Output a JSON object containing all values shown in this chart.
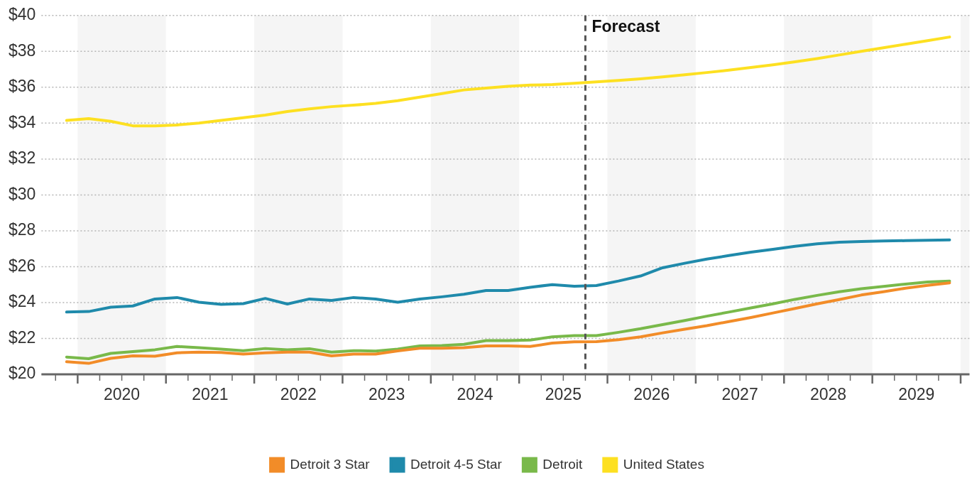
{
  "chart_data": {
    "type": "line",
    "x": [
      2019.875,
      2020.125,
      2020.375,
      2020.625,
      2020.875,
      2021.125,
      2021.375,
      2021.625,
      2021.875,
      2022.125,
      2022.375,
      2022.625,
      2022.875,
      2023.125,
      2023.375,
      2023.625,
      2023.875,
      2024.125,
      2024.375,
      2024.625,
      2024.875,
      2025.125,
      2025.375,
      2025.625,
      2025.875,
      2026.125,
      2026.375,
      2026.625,
      2026.875,
      2027.125,
      2027.375,
      2027.625,
      2027.875,
      2028.125,
      2028.375,
      2028.625,
      2028.875,
      2029.125,
      2029.375,
      2029.625,
      2029.875
    ],
    "series": [
      {
        "name": "Detroit 3 Star",
        "color": "#f28c28",
        "values": [
          20.7,
          20.61,
          20.89,
          21.03,
          21.01,
          21.2,
          21.24,
          21.22,
          21.13,
          21.2,
          21.24,
          21.24,
          21.03,
          21.13,
          21.13,
          21.31,
          21.45,
          21.45,
          21.48,
          21.58,
          21.58,
          21.55,
          21.74,
          21.81,
          21.82,
          21.93,
          22.09,
          22.31,
          22.51,
          22.71,
          22.94,
          23.17,
          23.42,
          23.67,
          23.93,
          24.17,
          24.42,
          24.6,
          24.8,
          24.96,
          25.1
        ]
      },
      {
        "name": "Detroit 4-5 Star",
        "color": "#1f8aab",
        "values": [
          23.47,
          23.5,
          23.74,
          23.81,
          24.2,
          24.28,
          24.02,
          23.9,
          23.94,
          24.23,
          23.92,
          24.2,
          24.12,
          24.28,
          24.2,
          24.02,
          24.2,
          24.32,
          24.46,
          24.67,
          24.67,
          24.85,
          25.0,
          24.91,
          24.95,
          25.2,
          25.48,
          25.94,
          26.19,
          26.42,
          26.62,
          26.81,
          26.97,
          27.14,
          27.27,
          27.36,
          27.4,
          27.43,
          27.45,
          27.47,
          27.49
        ]
      },
      {
        "name": "Detroit",
        "color": "#79b94a",
        "values": [
          20.96,
          20.87,
          21.17,
          21.27,
          21.37,
          21.55,
          21.48,
          21.41,
          21.32,
          21.44,
          21.37,
          21.43,
          21.24,
          21.32,
          21.3,
          21.41,
          21.58,
          21.6,
          21.67,
          21.88,
          21.88,
          21.91,
          22.09,
          22.16,
          22.16,
          22.34,
          22.54,
          22.77,
          23.0,
          23.24,
          23.47,
          23.7,
          23.93,
          24.18,
          24.4,
          24.6,
          24.77,
          24.9,
          25.03,
          25.15,
          25.2
        ]
      },
      {
        "name": "United States",
        "color": "#fde021",
        "values": [
          34.15,
          34.25,
          34.1,
          33.85,
          33.85,
          33.9,
          34.0,
          34.15,
          34.3,
          34.45,
          34.65,
          34.8,
          34.92,
          35.0,
          35.1,
          35.25,
          35.45,
          35.65,
          35.85,
          35.95,
          36.05,
          36.12,
          36.15,
          36.22,
          36.3,
          36.38,
          36.47,
          36.58,
          36.7,
          36.82,
          36.95,
          37.1,
          37.25,
          37.42,
          37.6,
          37.8,
          38.0,
          38.2,
          38.4,
          38.6,
          38.8
        ]
      }
    ],
    "xlim": [
      2019.59,
      2030.1
    ],
    "xticks": [
      {
        "value": 2019.75,
        "label": null
      },
      {
        "value": 2020,
        "label": null
      },
      {
        "value": 2020.25,
        "label": null
      },
      {
        "value": 2020.5,
        "label": "2020"
      },
      {
        "value": 2020.75,
        "label": null
      },
      {
        "value": 2021,
        "label": null
      },
      {
        "value": 2021.25,
        "label": null
      },
      {
        "value": 2021.5,
        "label": "2021"
      },
      {
        "value": 2021.75,
        "label": null
      },
      {
        "value": 2022,
        "label": null
      },
      {
        "value": 2022.25,
        "label": null
      },
      {
        "value": 2022.5,
        "label": "2022"
      },
      {
        "value": 2022.75,
        "label": null
      },
      {
        "value": 2023,
        "label": null
      },
      {
        "value": 2023.25,
        "label": null
      },
      {
        "value": 2023.5,
        "label": "2023"
      },
      {
        "value": 2023.75,
        "label": null
      },
      {
        "value": 2024,
        "label": null
      },
      {
        "value": 2024.25,
        "label": null
      },
      {
        "value": 2024.5,
        "label": "2024"
      },
      {
        "value": 2024.75,
        "label": null
      },
      {
        "value": 2025,
        "label": null
      },
      {
        "value": 2025.25,
        "label": null
      },
      {
        "value": 2025.5,
        "label": "2025"
      },
      {
        "value": 2025.75,
        "label": null
      },
      {
        "value": 2026,
        "label": null
      },
      {
        "value": 2026.25,
        "label": null
      },
      {
        "value": 2026.5,
        "label": "2026"
      },
      {
        "value": 2026.75,
        "label": null
      },
      {
        "value": 2027,
        "label": null
      },
      {
        "value": 2027.25,
        "label": null
      },
      {
        "value": 2027.5,
        "label": "2027"
      },
      {
        "value": 2027.75,
        "label": null
      },
      {
        "value": 2028,
        "label": null
      },
      {
        "value": 2028.25,
        "label": null
      },
      {
        "value": 2028.5,
        "label": "2028"
      },
      {
        "value": 2028.75,
        "label": null
      },
      {
        "value": 2029,
        "label": null
      },
      {
        "value": 2029.25,
        "label": null
      },
      {
        "value": 2029.5,
        "label": "2029"
      },
      {
        "value": 2029.75,
        "label": null
      },
      {
        "value": 2030,
        "label": null
      }
    ],
    "ylim": [
      20,
      40
    ],
    "yticks": [
      {
        "value": 20,
        "label": "$20"
      },
      {
        "value": 22,
        "label": "$22"
      },
      {
        "value": 24,
        "label": "$24"
      },
      {
        "value": 26,
        "label": "$26"
      },
      {
        "value": 28,
        "label": "$28"
      },
      {
        "value": 30,
        "label": "$30"
      },
      {
        "value": 32,
        "label": "$32"
      },
      {
        "value": 34,
        "label": "$34"
      },
      {
        "value": 36,
        "label": "$36"
      },
      {
        "value": 38,
        "label": "$38"
      },
      {
        "value": 40,
        "label": "$40"
      }
    ],
    "grid": "y",
    "legend": "bottom",
    "marker": "none",
    "line_style": "solid",
    "ref_lines": [
      {
        "axis": "x",
        "value": 2025.75,
        "label": "Forecast",
        "color": "#555555",
        "line_style": "dashed"
      }
    ],
    "bands": [
      {
        "axis": "x",
        "from": 2020,
        "to": 2021,
        "color": "#f5f5f5"
      },
      {
        "axis": "x",
        "from": 2022,
        "to": 2023,
        "color": "#f5f5f5"
      },
      {
        "axis": "x",
        "from": 2024,
        "to": 2025,
        "color": "#f5f5f5"
      },
      {
        "axis": "x",
        "from": 2026,
        "to": 2027,
        "color": "#f5f5f5"
      },
      {
        "axis": "x",
        "from": 2028,
        "to": 2029,
        "color": "#f5f5f5"
      },
      {
        "axis": "x",
        "from": 2030,
        "to": 2030.1,
        "color": "#f5f5f5"
      }
    ]
  }
}
